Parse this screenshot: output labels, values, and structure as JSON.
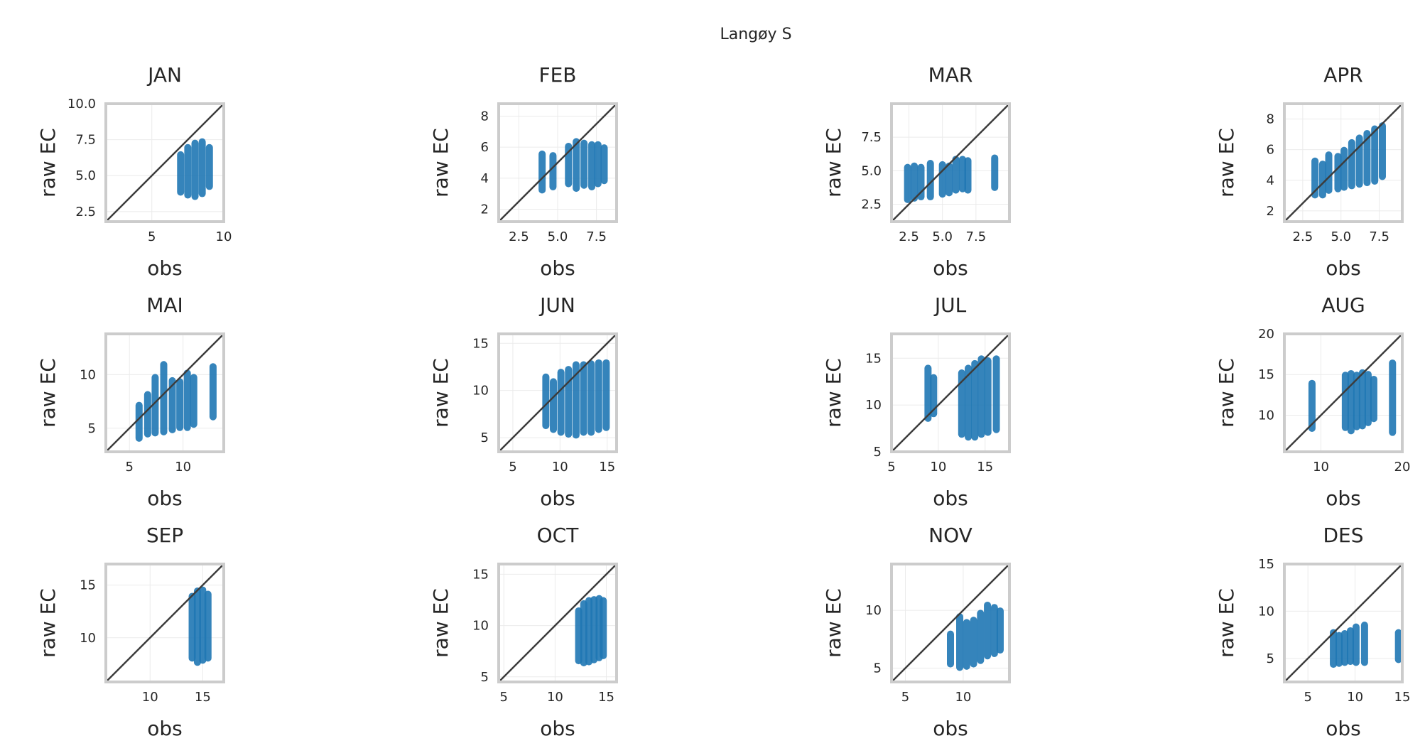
{
  "figure": {
    "suptitle": "Langøy S"
  },
  "chart_data": [
    {
      "type": "scatter",
      "title": "JAN",
      "xlabel": "obs",
      "ylabel": "raw EC",
      "xlim": [
        1.8,
        10
      ],
      "ylim": [
        1.8,
        10
      ],
      "xticks": [
        5,
        10
      ],
      "yticks": [
        2.5,
        5.0,
        7.5,
        10.0
      ],
      "xtick_labels": [
        "5",
        "10"
      ],
      "yticks_labels": [
        "2.5",
        "5.0",
        "7.5",
        "10.0"
      ],
      "series": [
        {
          "color": "#1f77b4",
          "clusters": [
            {
              "x": 7.0,
              "ymin": 3.8,
              "ymax": 6.5
            },
            {
              "x": 7.5,
              "ymin": 3.6,
              "ymax": 7.0
            },
            {
              "x": 8.0,
              "ymin": 3.5,
              "ymax": 7.3
            },
            {
              "x": 8.5,
              "ymin": 3.7,
              "ymax": 7.4
            },
            {
              "x": 9.0,
              "ymin": 4.2,
              "ymax": 7.0
            }
          ]
        }
      ]
    },
    {
      "type": "scatter",
      "title": "FEB",
      "xlabel": "obs",
      "ylabel": "raw EC",
      "xlim": [
        1.2,
        8.8
      ],
      "ylim": [
        1.2,
        8.8
      ],
      "xticks": [
        2.5,
        5.0,
        7.5
      ],
      "yticks": [
        2,
        4,
        6,
        8
      ],
      "xtick_labels": [
        "2.5",
        "5.0",
        "7.5"
      ],
      "yticks_labels": [
        "2",
        "4",
        "6",
        "8"
      ],
      "series": [
        {
          "color": "#1f77b4",
          "clusters": [
            {
              "x": 4.0,
              "ymin": 3.2,
              "ymax": 5.6
            },
            {
              "x": 4.7,
              "ymin": 3.4,
              "ymax": 5.5
            },
            {
              "x": 5.7,
              "ymin": 3.6,
              "ymax": 6.1
            },
            {
              "x": 6.2,
              "ymin": 3.3,
              "ymax": 6.4
            },
            {
              "x": 6.7,
              "ymin": 3.5,
              "ymax": 6.3
            },
            {
              "x": 7.2,
              "ymin": 3.4,
              "ymax": 6.2
            },
            {
              "x": 7.6,
              "ymin": 3.6,
              "ymax": 6.2
            },
            {
              "x": 8.0,
              "ymin": 3.8,
              "ymax": 6.0
            }
          ]
        }
      ]
    },
    {
      "type": "scatter",
      "title": "MAR",
      "xlabel": "obs",
      "ylabel": "raw EC",
      "xlim": [
        1.2,
        10
      ],
      "ylim": [
        1.2,
        10
      ],
      "xticks": [
        2.5,
        5.0,
        7.5
      ],
      "yticks": [
        2.5,
        5.0,
        7.5
      ],
      "xtick_labels": [
        "2.5",
        "5.0",
        "7.5"
      ],
      "yticks_labels": [
        "2.5",
        "5.0",
        "7.5"
      ],
      "series": [
        {
          "color": "#1f77b4",
          "clusters": [
            {
              "x": 2.4,
              "ymin": 2.8,
              "ymax": 5.3
            },
            {
              "x": 2.9,
              "ymin": 2.9,
              "ymax": 5.4
            },
            {
              "x": 3.4,
              "ymin": 3.0,
              "ymax": 5.3
            },
            {
              "x": 4.1,
              "ymin": 3.0,
              "ymax": 5.6
            },
            {
              "x": 5.0,
              "ymin": 3.2,
              "ymax": 5.5
            },
            {
              "x": 5.5,
              "ymin": 3.3,
              "ymax": 5.4
            },
            {
              "x": 6.0,
              "ymin": 3.5,
              "ymax": 5.9
            },
            {
              "x": 6.5,
              "ymin": 3.6,
              "ymax": 5.9
            },
            {
              "x": 6.9,
              "ymin": 3.5,
              "ymax": 5.8
            },
            {
              "x": 8.9,
              "ymin": 3.7,
              "ymax": 6.0
            }
          ]
        }
      ]
    },
    {
      "type": "scatter",
      "title": "APR",
      "xlabel": "obs",
      "ylabel": "raw EC",
      "xlim": [
        1.3,
        9.0
      ],
      "ylim": [
        1.3,
        9.0
      ],
      "xticks": [
        2.5,
        5.0,
        7.5
      ],
      "yticks": [
        2,
        4,
        6,
        8
      ],
      "xtick_labels": [
        "2.5",
        "5.0",
        "7.5"
      ],
      "yticks_labels": [
        "2",
        "4",
        "6",
        "8"
      ],
      "series": [
        {
          "color": "#1f77b4",
          "clusters": [
            {
              "x": 3.3,
              "ymin": 3.0,
              "ymax": 5.3
            },
            {
              "x": 3.8,
              "ymin": 3.0,
              "ymax": 5.1
            },
            {
              "x": 4.2,
              "ymin": 3.3,
              "ymax": 5.7
            },
            {
              "x": 4.8,
              "ymin": 3.4,
              "ymax": 5.6
            },
            {
              "x": 5.2,
              "ymin": 3.5,
              "ymax": 6.0
            },
            {
              "x": 5.7,
              "ymin": 3.6,
              "ymax": 6.5
            },
            {
              "x": 6.2,
              "ymin": 3.7,
              "ymax": 6.8
            },
            {
              "x": 6.7,
              "ymin": 3.8,
              "ymax": 7.1
            },
            {
              "x": 7.2,
              "ymin": 3.9,
              "ymax": 7.4
            },
            {
              "x": 7.7,
              "ymin": 4.2,
              "ymax": 7.6
            }
          ]
        }
      ]
    },
    {
      "type": "scatter",
      "title": "MAI",
      "xlabel": "obs",
      "ylabel": "raw EC",
      "xlim": [
        2.8,
        13.8
      ],
      "ylim": [
        2.8,
        13.8
      ],
      "xticks": [
        5,
        10
      ],
      "yticks": [
        5,
        10
      ],
      "xtick_labels": [
        "5",
        "10"
      ],
      "yticks_labels": [
        "5",
        "10"
      ],
      "series": [
        {
          "color": "#1f77b4",
          "clusters": [
            {
              "x": 5.9,
              "ymin": 4.0,
              "ymax": 7.2
            },
            {
              "x": 6.7,
              "ymin": 4.4,
              "ymax": 8.2
            },
            {
              "x": 7.4,
              "ymin": 4.5,
              "ymax": 9.8
            },
            {
              "x": 8.2,
              "ymin": 4.6,
              "ymax": 11.0
            },
            {
              "x": 9.0,
              "ymin": 4.8,
              "ymax": 9.5
            },
            {
              "x": 9.7,
              "ymin": 5.0,
              "ymax": 9.4
            },
            {
              "x": 10.4,
              "ymin": 5.0,
              "ymax": 10.2
            },
            {
              "x": 11.0,
              "ymin": 5.3,
              "ymax": 9.8
            },
            {
              "x": 12.8,
              "ymin": 6.0,
              "ymax": 10.8
            }
          ]
        }
      ]
    },
    {
      "type": "scatter",
      "title": "JUN",
      "xlabel": "obs",
      "ylabel": "raw EC",
      "xlim": [
        3.5,
        16
      ],
      "ylim": [
        3.5,
        16
      ],
      "xticks": [
        5,
        10,
        15
      ],
      "yticks": [
        5,
        10,
        15
      ],
      "xtick_labels": [
        "5",
        "10",
        "15"
      ],
      "yticks_labels": [
        "5",
        "10",
        "15"
      ],
      "series": [
        {
          "color": "#1f77b4",
          "clusters": [
            {
              "x": 8.5,
              "ymin": 6.2,
              "ymax": 11.5
            },
            {
              "x": 9.3,
              "ymin": 5.8,
              "ymax": 11.0
            },
            {
              "x": 10.1,
              "ymin": 5.5,
              "ymax": 12.0
            },
            {
              "x": 10.9,
              "ymin": 5.3,
              "ymax": 12.3
            },
            {
              "x": 11.7,
              "ymin": 5.2,
              "ymax": 12.8
            },
            {
              "x": 12.5,
              "ymin": 5.5,
              "ymax": 12.8
            },
            {
              "x": 13.3,
              "ymin": 5.5,
              "ymax": 12.9
            },
            {
              "x": 14.1,
              "ymin": 5.8,
              "ymax": 13.0
            },
            {
              "x": 14.9,
              "ymin": 6.0,
              "ymax": 13.0
            }
          ]
        }
      ]
    },
    {
      "type": "scatter",
      "title": "JUL",
      "xlabel": "obs",
      "ylabel": "raw EC",
      "xlim": [
        5,
        17.6
      ],
      "ylim": [
        5,
        17.6
      ],
      "xticks": [
        5,
        10,
        15
      ],
      "yticks": [
        5,
        10,
        15
      ],
      "xtick_labels": [
        "5",
        "10",
        "15"
      ],
      "yticks_labels": [
        "5",
        "10",
        "15"
      ],
      "series": [
        {
          "color": "#1f77b4",
          "clusters": [
            {
              "x": 8.9,
              "ymin": 8.5,
              "ymax": 14.0
            },
            {
              "x": 9.5,
              "ymin": 9.0,
              "ymax": 13.0
            },
            {
              "x": 12.5,
              "ymin": 6.8,
              "ymax": 13.5
            },
            {
              "x": 13.2,
              "ymin": 6.5,
              "ymax": 14.0
            },
            {
              "x": 13.9,
              "ymin": 6.5,
              "ymax": 14.5
            },
            {
              "x": 14.6,
              "ymin": 6.8,
              "ymax": 15.0
            },
            {
              "x": 15.3,
              "ymin": 7.0,
              "ymax": 14.8
            },
            {
              "x": 16.2,
              "ymin": 7.3,
              "ymax": 15.0
            }
          ]
        }
      ]
    },
    {
      "type": "scatter",
      "title": "AUG",
      "xlabel": "obs",
      "ylabel": "raw EC",
      "xlim": [
        5.5,
        20
      ],
      "ylim": [
        5.5,
        20
      ],
      "xticks": [
        10,
        20
      ],
      "yticks": [
        10,
        15,
        20
      ],
      "xtick_labels": [
        "10",
        "20"
      ],
      "yticks_labels": [
        "10",
        "15",
        "20"
      ],
      "series": [
        {
          "color": "#1f77b4",
          "clusters": [
            {
              "x": 8.9,
              "ymin": 8.3,
              "ymax": 14.0
            },
            {
              "x": 13.0,
              "ymin": 8.4,
              "ymax": 15.0
            },
            {
              "x": 13.7,
              "ymin": 8.0,
              "ymax": 15.2
            },
            {
              "x": 14.4,
              "ymin": 8.5,
              "ymax": 15.0
            },
            {
              "x": 15.1,
              "ymin": 8.6,
              "ymax": 15.3
            },
            {
              "x": 15.8,
              "ymin": 9.0,
              "ymax": 15.1
            },
            {
              "x": 16.5,
              "ymin": 9.5,
              "ymax": 14.5
            },
            {
              "x": 18.8,
              "ymin": 7.8,
              "ymax": 16.5
            }
          ]
        }
      ]
    },
    {
      "type": "scatter",
      "title": "SEP",
      "xlabel": "obs",
      "ylabel": "raw EC",
      "xlim": [
        5.8,
        17
      ],
      "ylim": [
        5.8,
        17
      ],
      "xticks": [
        10,
        15
      ],
      "yticks": [
        10,
        15
      ],
      "xtick_labels": [
        "10",
        "15"
      ],
      "yticks_labels": [
        "10",
        "15"
      ],
      "series": [
        {
          "color": "#1f77b4",
          "clusters": [
            {
              "x": 14.0,
              "ymin": 8.0,
              "ymax": 14.0
            },
            {
              "x": 14.5,
              "ymin": 7.6,
              "ymax": 14.5
            },
            {
              "x": 15.0,
              "ymin": 7.8,
              "ymax": 14.6
            },
            {
              "x": 15.5,
              "ymin": 8.0,
              "ymax": 14.2
            }
          ]
        }
      ]
    },
    {
      "type": "scatter",
      "title": "OCT",
      "xlabel": "obs",
      "ylabel": "raw EC",
      "xlim": [
        4.5,
        16
      ],
      "ylim": [
        4.5,
        16
      ],
      "xticks": [
        5,
        10,
        15
      ],
      "yticks": [
        5,
        10,
        15
      ],
      "xtick_labels": [
        "5",
        "10",
        "15"
      ],
      "yticks_labels": [
        "5",
        "10",
        "15"
      ],
      "series": [
        {
          "color": "#1f77b4",
          "clusters": [
            {
              "x": 12.3,
              "ymin": 6.5,
              "ymax": 11.5
            },
            {
              "x": 12.8,
              "ymin": 6.3,
              "ymax": 12.2
            },
            {
              "x": 13.3,
              "ymin": 6.4,
              "ymax": 12.5
            },
            {
              "x": 13.8,
              "ymin": 6.6,
              "ymax": 12.6
            },
            {
              "x": 14.3,
              "ymin": 6.8,
              "ymax": 12.7
            },
            {
              "x": 14.7,
              "ymin": 7.0,
              "ymax": 12.5
            }
          ]
        }
      ]
    },
    {
      "type": "scatter",
      "title": "NOV",
      "xlabel": "obs",
      "ylabel": "raw EC",
      "xlim": [
        3.8,
        14
      ],
      "ylim": [
        3.8,
        14
      ],
      "xticks": [
        5,
        10
      ],
      "yticks": [
        5,
        10
      ],
      "xtick_labels": [
        "5",
        "10"
      ],
      "yticks_labels": [
        "5",
        "10"
      ],
      "series": [
        {
          "color": "#1f77b4",
          "clusters": [
            {
              "x": 8.9,
              "ymin": 5.3,
              "ymax": 8.0
            },
            {
              "x": 9.7,
              "ymin": 5.0,
              "ymax": 9.5
            },
            {
              "x": 10.3,
              "ymin": 5.1,
              "ymax": 9.0
            },
            {
              "x": 10.9,
              "ymin": 5.3,
              "ymax": 9.2
            },
            {
              "x": 11.5,
              "ymin": 5.6,
              "ymax": 9.8
            },
            {
              "x": 12.1,
              "ymin": 6.0,
              "ymax": 10.5
            },
            {
              "x": 12.7,
              "ymin": 6.2,
              "ymax": 10.3
            },
            {
              "x": 13.2,
              "ymin": 6.5,
              "ymax": 10.0
            }
          ]
        }
      ]
    },
    {
      "type": "scatter",
      "title": "DES",
      "xlabel": "obs",
      "ylabel": "raw EC",
      "xlim": [
        2.5,
        15
      ],
      "ylim": [
        2.5,
        15
      ],
      "xticks": [
        5,
        10,
        15
      ],
      "yticks": [
        5,
        10,
        15
      ],
      "xtick_labels": [
        "5",
        "10",
        "15"
      ],
      "yticks_labels": [
        "5",
        "10",
        "15"
      ],
      "series": [
        {
          "color": "#1f77b4",
          "clusters": [
            {
              "x": 7.7,
              "ymin": 4.3,
              "ymax": 7.8
            },
            {
              "x": 8.3,
              "ymin": 4.4,
              "ymax": 7.5
            },
            {
              "x": 8.9,
              "ymin": 4.5,
              "ymax": 7.7
            },
            {
              "x": 9.5,
              "ymin": 4.6,
              "ymax": 8.0
            },
            {
              "x": 10.1,
              "ymin": 4.5,
              "ymax": 8.4
            },
            {
              "x": 11.0,
              "ymin": 4.5,
              "ymax": 8.6
            },
            {
              "x": 14.6,
              "ymin": 4.8,
              "ymax": 7.8
            }
          ]
        }
      ]
    }
  ]
}
